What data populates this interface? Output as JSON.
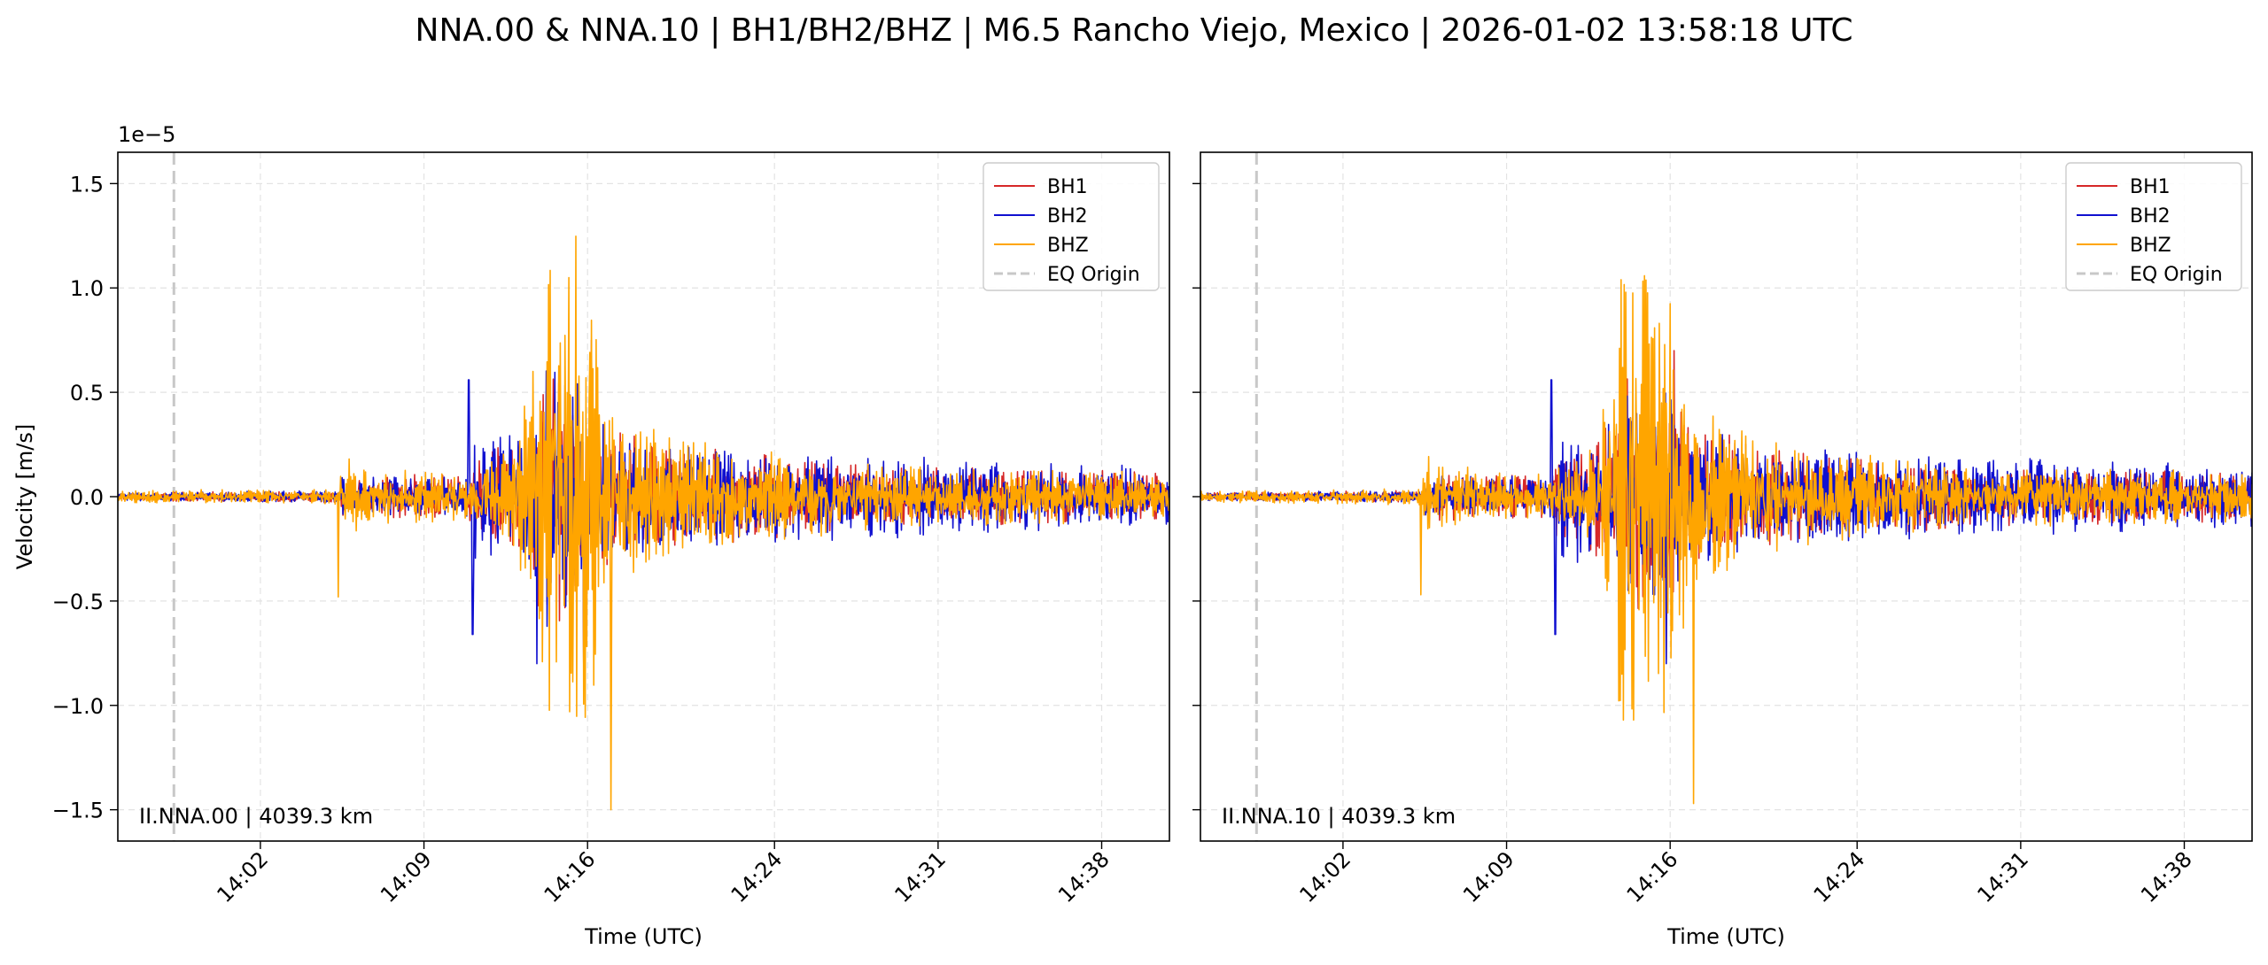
{
  "figure": {
    "title": "NNA.00 & NNA.10 | BH1/BH2/BHZ | M6.5 Rancho Viejo, Mexico | 2026-01-02 13:58:18 UTC"
  },
  "colors": {
    "BH1": "#d62728",
    "BH2": "#1010d0",
    "BHZ": "#ffa500",
    "origin": "#c8c8c8"
  },
  "chart_data": [
    {
      "type": "line",
      "panel": "left",
      "station_label": "II.NNA.00 | 4039.3 km",
      "xlabel": "Time (UTC)",
      "ylabel": "Velocity [m/s]",
      "y_offset_text": "1e−5",
      "y_scale": 1e-05,
      "xlim": [
        "13:55:54",
        "14:40:54"
      ],
      "ylim": [
        -1.65,
        1.65
      ],
      "x_ticks": [
        "14:02",
        "14:09",
        "14:16",
        "14:24",
        "14:31",
        "14:38"
      ],
      "y_ticks": [
        "−1.5",
        "−1.0",
        "−0.5",
        "0.0",
        "0.5",
        "1.0",
        "1.5"
      ],
      "grid": true,
      "legend_position": "top-right",
      "legend": [
        "BH1",
        "BH2",
        "BHZ",
        "EQ Origin"
      ],
      "eq_origin": "13:58:18",
      "series": [
        {
          "name": "BH1",
          "x_start": "13:55:54",
          "sample_interval_s": 2,
          "phase_arrivals": {
            "P": "14:05:20",
            "PP": "14:10:50",
            "S": "14:13:50",
            "surface": "14:16:00"
          },
          "envelope": [
            [
              0,
              0.02
            ],
            [
              9.5,
              0.03
            ],
            [
              9.6,
              0.12
            ],
            [
              15,
              0.1
            ],
            [
              15.2,
              0.2
            ],
            [
              17.5,
              0.35
            ],
            [
              18.5,
              0.7
            ],
            [
              19.5,
              0.6
            ],
            [
              21,
              0.35
            ],
            [
              24,
              0.25
            ],
            [
              33,
              0.15
            ],
            [
              45,
              0.12
            ]
          ],
          "extremes": [
            {
              "t": "14:16:10",
              "v": 0.75
            },
            {
              "t": "14:15:50",
              "v": -0.8
            }
          ]
        },
        {
          "name": "BH2",
          "x_start": "13:55:54",
          "sample_interval_s": 2,
          "phase_arrivals": {
            "P": "14:05:20",
            "PP": "14:10:50",
            "S": "14:13:50",
            "surface": "14:16:00"
          },
          "envelope": [
            [
              0,
              0.02
            ],
            [
              9.5,
              0.03
            ],
            [
              9.6,
              0.1
            ],
            [
              15,
              0.1
            ],
            [
              15.2,
              0.3
            ],
            [
              17.5,
              0.35
            ],
            [
              18.5,
              0.75
            ],
            [
              19.5,
              0.6
            ],
            [
              21,
              0.35
            ],
            [
              24,
              0.25
            ],
            [
              33,
              0.2
            ],
            [
              45,
              0.15
            ]
          ],
          "extremes": [
            {
              "t": "14:10:55",
              "v": 0.56
            },
            {
              "t": "14:11:05",
              "v": -0.66
            },
            {
              "t": "14:13:50",
              "v": -0.8
            },
            {
              "t": "14:15:50",
              "v": -0.8
            }
          ]
        },
        {
          "name": "BHZ",
          "x_start": "13:55:54",
          "sample_interval_s": 2,
          "phase_arrivals": {
            "P": "14:05:20",
            "PP": "14:10:50",
            "S": "14:13:50",
            "surface": "14:16:00"
          },
          "envelope": [
            [
              0,
              0.03
            ],
            [
              9.5,
              0.04
            ],
            [
              9.6,
              0.22
            ],
            [
              10.5,
              0.15
            ],
            [
              15,
              0.12
            ],
            [
              17,
              0.25
            ],
            [
              18,
              1.1
            ],
            [
              19,
              1.42
            ],
            [
              20,
              1.3
            ],
            [
              21,
              0.5
            ],
            [
              24,
              0.28
            ],
            [
              33,
              0.15
            ],
            [
              45,
              0.12
            ]
          ],
          "extremes": [
            {
              "t": "14:05:20",
              "v": -0.48
            },
            {
              "t": "14:17:00",
              "v": 1.42
            },
            {
              "t": "14:17:00",
              "v": -1.5
            }
          ]
        }
      ]
    },
    {
      "type": "line",
      "panel": "right",
      "station_label": "II.NNA.10 | 4039.3 km",
      "xlabel": "Time (UTC)",
      "ylabel": "",
      "y_scale": 1e-05,
      "xlim": [
        "13:55:54",
        "14:40:54"
      ],
      "ylim": [
        -1.65,
        1.65
      ],
      "x_ticks": [
        "14:02",
        "14:09",
        "14:16",
        "14:24",
        "14:31",
        "14:38"
      ],
      "y_ticks": [],
      "grid": true,
      "legend_position": "top-right",
      "legend": [
        "BH1",
        "BH2",
        "BHZ",
        "EQ Origin"
      ],
      "eq_origin": "13:58:18",
      "series": [
        {
          "name": "BH1",
          "x_start": "13:55:54",
          "sample_interval_s": 2,
          "phase_arrivals": {
            "P": "14:05:20",
            "PP": "14:10:50",
            "S": "14:13:50",
            "surface": "14:16:00"
          },
          "envelope": [
            [
              0,
              0.02
            ],
            [
              9.5,
              0.03
            ],
            [
              9.6,
              0.12
            ],
            [
              15,
              0.1
            ],
            [
              15.2,
              0.2
            ],
            [
              17.5,
              0.35
            ],
            [
              18.5,
              0.7
            ],
            [
              19.5,
              0.6
            ],
            [
              21,
              0.35
            ],
            [
              24,
              0.25
            ],
            [
              33,
              0.15
            ],
            [
              45,
              0.12
            ]
          ],
          "extremes": [
            {
              "t": "14:16:10",
              "v": 0.7
            },
            {
              "t": "14:15:50",
              "v": -0.78
            }
          ]
        },
        {
          "name": "BH2",
          "x_start": "13:55:54",
          "sample_interval_s": 2,
          "phase_arrivals": {
            "P": "14:05:20",
            "PP": "14:10:50",
            "S": "14:13:50",
            "surface": "14:16:00"
          },
          "envelope": [
            [
              0,
              0.02
            ],
            [
              9.5,
              0.03
            ],
            [
              9.6,
              0.1
            ],
            [
              15,
              0.1
            ],
            [
              15.2,
              0.3
            ],
            [
              17.5,
              0.35
            ],
            [
              18.5,
              0.75
            ],
            [
              19.5,
              0.6
            ],
            [
              21,
              0.35
            ],
            [
              24,
              0.25
            ],
            [
              33,
              0.2
            ],
            [
              45,
              0.15
            ]
          ],
          "extremes": [
            {
              "t": "14:10:55",
              "v": 0.56
            },
            {
              "t": "14:11:05",
              "v": -0.66
            },
            {
              "t": "14:13:50",
              "v": -0.8
            },
            {
              "t": "14:15:50",
              "v": -0.8
            }
          ]
        },
        {
          "name": "BHZ",
          "x_start": "13:55:54",
          "sample_interval_s": 2,
          "phase_arrivals": {
            "P": "14:05:20",
            "PP": "14:10:50",
            "S": "14:13:50",
            "surface": "14:16:00"
          },
          "envelope": [
            [
              0,
              0.03
            ],
            [
              9.5,
              0.04
            ],
            [
              9.6,
              0.22
            ],
            [
              10.5,
              0.15
            ],
            [
              15,
              0.12
            ],
            [
              17,
              0.25
            ],
            [
              18,
              1.1
            ],
            [
              19,
              1.38
            ],
            [
              20,
              1.25
            ],
            [
              21,
              0.5
            ],
            [
              24,
              0.28
            ],
            [
              33,
              0.15
            ],
            [
              45,
              0.12
            ]
          ],
          "extremes": [
            {
              "t": "14:05:20",
              "v": -0.47
            },
            {
              "t": "14:17:00",
              "v": 1.38
            },
            {
              "t": "14:17:00",
              "v": -1.47
            }
          ]
        }
      ]
    }
  ]
}
